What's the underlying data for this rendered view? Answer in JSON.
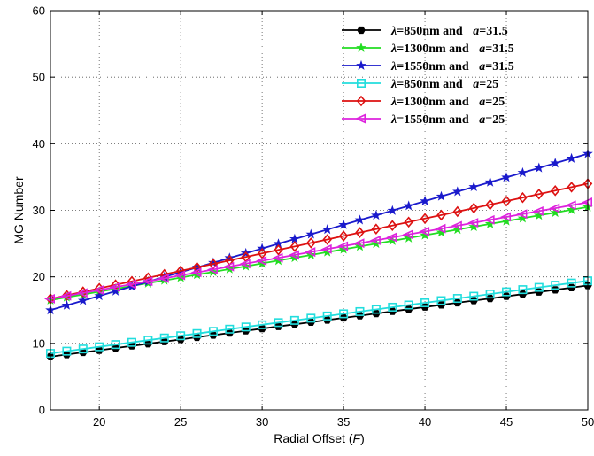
{
  "chart_data": {
    "type": "line",
    "xlabel_prefix": "Radial Offset (",
    "xlabel_var": "F",
    "xlabel_suffix": ")",
    "ylabel": "MG Number",
    "xlim": [
      17,
      50
    ],
    "ylim": [
      0,
      60
    ],
    "xticks": [
      20,
      25,
      30,
      35,
      40,
      45,
      50
    ],
    "yticks": [
      0,
      10,
      20,
      30,
      40,
      50,
      60
    ],
    "grid": true,
    "legend_position": "top-right",
    "series": [
      {
        "lambda": "850nm",
        "a": "31.5",
        "color": "#000000",
        "marker": "hexagon",
        "y_start": 8.0,
        "y_end": 18.7
      },
      {
        "lambda": "1300nm",
        "a": "31.5",
        "color": "#22dd22",
        "marker": "star",
        "y_start": 16.5,
        "y_end": 30.5
      },
      {
        "lambda": "1550nm",
        "a": "31.5",
        "color": "#1a1acc",
        "marker": "star",
        "y_start": 15.0,
        "y_end": 38.5
      },
      {
        "lambda": "850nm",
        "a": "25",
        "color": "#22dddd",
        "marker": "square",
        "y_start": 8.5,
        "y_end": 19.4
      },
      {
        "lambda": "1300nm",
        "a": "25",
        "color": "#dd1111",
        "marker": "diamond",
        "y_start": 16.7,
        "y_end": 34.0
      },
      {
        "lambda": "1550nm",
        "a": "25",
        "color": "#dd22dd",
        "marker": "triangle-left",
        "y_start": 16.7,
        "y_end": 31.2
      }
    ],
    "x_values_note": "markers at every 1 unit from 17 to 50"
  },
  "legend_labels": {
    "lambda_symbol": "λ",
    "a_symbol": "a",
    "and": "and"
  }
}
